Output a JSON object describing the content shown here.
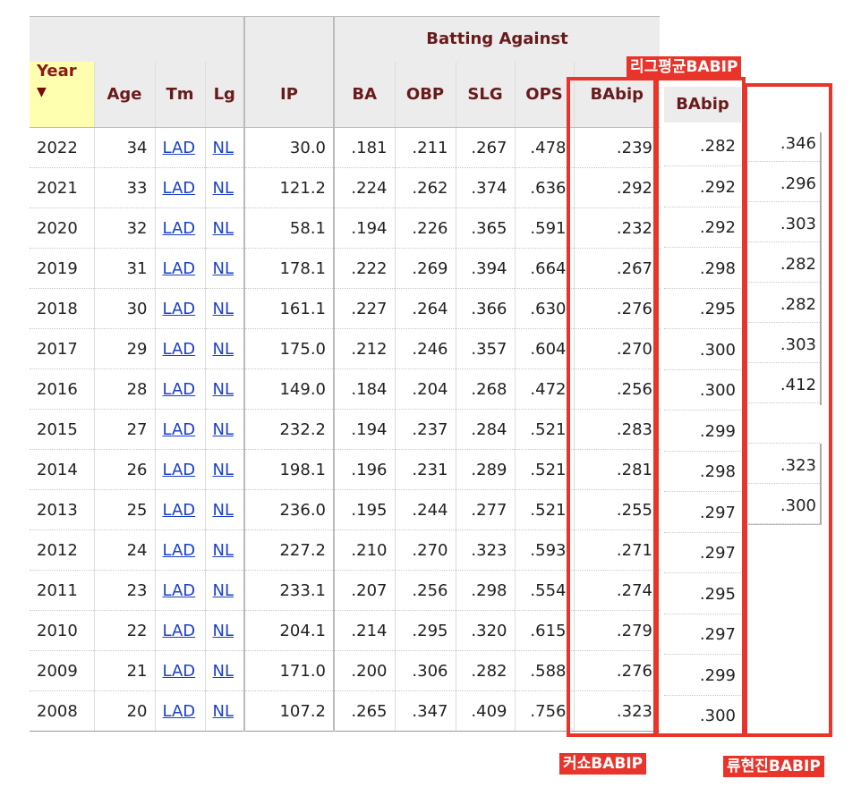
{
  "table": {
    "group_header": "Batting Against",
    "headers": [
      "Year",
      "Age",
      "Tm",
      "Lg",
      "IP",
      "BA",
      "OBP",
      "SLG",
      "OPS",
      "BAbip"
    ],
    "sort_arrow": "▼",
    "rows": [
      [
        "2022",
        "34",
        "LAD",
        "NL",
        "30.0",
        ".181",
        ".211",
        ".267",
        ".478",
        ".239"
      ],
      [
        "2021",
        "33",
        "LAD",
        "NL",
        "121.2",
        ".224",
        ".262",
        ".374",
        ".636",
        ".292"
      ],
      [
        "2020",
        "32",
        "LAD",
        "NL",
        "58.1",
        ".194",
        ".226",
        ".365",
        ".591",
        ".232"
      ],
      [
        "2019",
        "31",
        "LAD",
        "NL",
        "178.1",
        ".222",
        ".269",
        ".394",
        ".664",
        ".267"
      ],
      [
        "2018",
        "30",
        "LAD",
        "NL",
        "161.1",
        ".227",
        ".264",
        ".366",
        ".630",
        ".276"
      ],
      [
        "2017",
        "29",
        "LAD",
        "NL",
        "175.0",
        ".212",
        ".246",
        ".357",
        ".604",
        ".270"
      ],
      [
        "2016",
        "28",
        "LAD",
        "NL",
        "149.0",
        ".184",
        ".204",
        ".268",
        ".472",
        ".256"
      ],
      [
        "2015",
        "27",
        "LAD",
        "NL",
        "232.2",
        ".194",
        ".237",
        ".284",
        ".521",
        ".283"
      ],
      [
        "2014",
        "26",
        "LAD",
        "NL",
        "198.1",
        ".196",
        ".231",
        ".289",
        ".521",
        ".281"
      ],
      [
        "2013",
        "25",
        "LAD",
        "NL",
        "236.0",
        ".195",
        ".244",
        ".277",
        ".521",
        ".255"
      ],
      [
        "2012",
        "24",
        "LAD",
        "NL",
        "227.2",
        ".210",
        ".270",
        ".323",
        ".593",
        ".271"
      ],
      [
        "2011",
        "23",
        "LAD",
        "NL",
        "233.1",
        ".207",
        ".256",
        ".298",
        ".554",
        ".274"
      ],
      [
        "2010",
        "22",
        "LAD",
        "NL",
        "204.1",
        ".214",
        ".295",
        ".320",
        ".615",
        ".279"
      ],
      [
        "2009",
        "21",
        "LAD",
        "NL",
        "171.0",
        ".200",
        ".306",
        ".282",
        ".588",
        ".276"
      ],
      [
        "2008",
        "20",
        "LAD",
        "NL",
        "107.2",
        ".265",
        ".347",
        ".409",
        ".756",
        ".323"
      ]
    ]
  },
  "league_column": {
    "header": "BAbip",
    "values": [
      ".282",
      ".292",
      ".292",
      ".298",
      ".295",
      ".300",
      ".300",
      ".299",
      ".298",
      ".297",
      ".297",
      ".295",
      ".297",
      ".299",
      ".300"
    ]
  },
  "ryu_column": {
    "values": [
      ".346",
      ".296",
      ".303",
      ".282",
      ".282",
      ".303",
      ".412",
      "",
      ".323",
      ".300"
    ]
  },
  "annotations": {
    "league_label": "리그평균BABIP",
    "kershaw_label": "커쇼BABIP",
    "ryu_label": "류현진BABIP",
    "box_color": "#e8342a"
  }
}
